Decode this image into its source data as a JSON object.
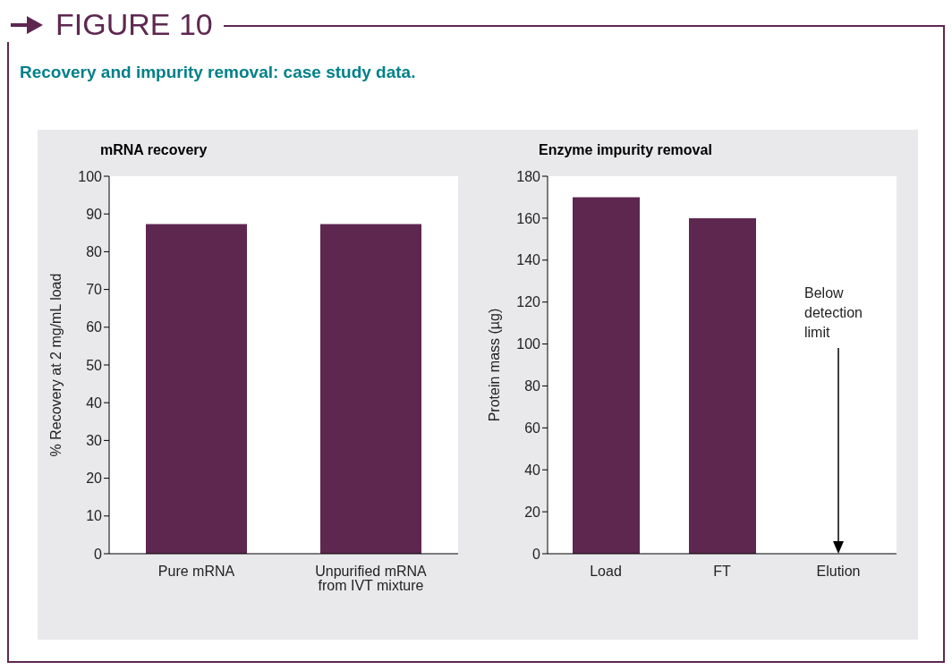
{
  "chart_data": [
    {
      "type": "bar",
      "title": "mRNA recovery",
      "ylabel": "% Recovery at 2 mg/mL load",
      "categories": [
        "Pure mRNA",
        "Unpurified mRNA from IVT mixture"
      ],
      "values": [
        87.3,
        87.3
      ],
      "color": "#5e2750",
      "ylim": [
        0,
        100
      ],
      "yticks": [
        0,
        10,
        20,
        30,
        40,
        50,
        60,
        70,
        80,
        90,
        100
      ],
      "annotations": [
        "FIGURE 10",
        "Recovery and impurity removal: case study data."
      ]
    },
    {
      "type": "bar",
      "title": "Enzyme impurity removal",
      "ylabel": "Protein mass (µg)",
      "categories": [
        "Load",
        "FT",
        "Elution"
      ],
      "values": [
        170,
        160,
        null
      ],
      "color": "#5e2750",
      "ylim": [
        0,
        180
      ],
      "yticks": [
        0,
        20,
        40,
        60,
        80,
        100,
        120,
        140,
        160,
        180
      ],
      "annotations": [
        "Below detection limit"
      ]
    }
  ]
}
